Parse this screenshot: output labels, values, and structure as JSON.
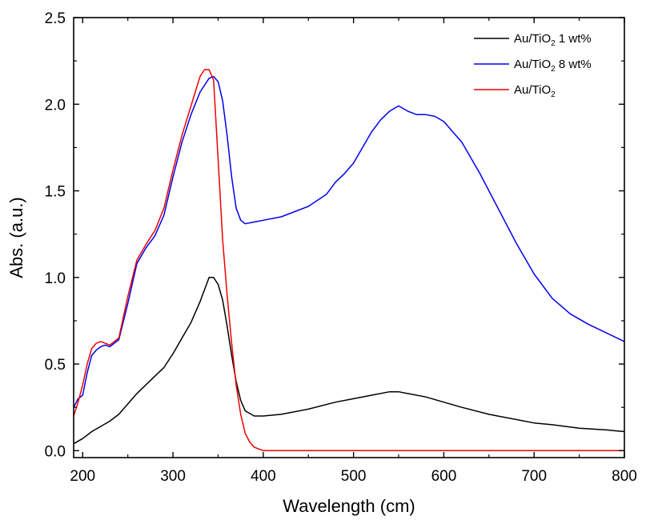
{
  "chart_data": {
    "type": "line",
    "title": "",
    "xlabel": "Wavelength (cm)",
    "ylabel": "Abs. (a.u.)",
    "xlim": [
      190,
      800
    ],
    "ylim": [
      -0.04,
      2.5
    ],
    "xticks": [
      200,
      300,
      400,
      500,
      600,
      700,
      800
    ],
    "xtick_labels": [
      "200",
      "300",
      "400",
      "500",
      "600",
      "700",
      "800"
    ],
    "yticks": [
      0.0,
      0.5,
      1.0,
      1.5,
      2.0,
      2.5
    ],
    "ytick_labels": [
      "0.0",
      "0.5",
      "1.0",
      "1.5",
      "2.0",
      "2.5"
    ],
    "grid": false,
    "legend_position": "top-right",
    "series": [
      {
        "name": "Au/TiO₂ 1 wt%",
        "legend_main": "Au/TiO",
        "legend_sub": "2",
        "legend_suffix": " 1 wt%",
        "color": "#000000",
        "x": [
          190,
          200,
          210,
          220,
          230,
          240,
          250,
          260,
          270,
          280,
          290,
          300,
          310,
          320,
          330,
          340,
          345,
          350,
          355,
          360,
          365,
          370,
          375,
          380,
          390,
          400,
          420,
          450,
          480,
          500,
          520,
          540,
          550,
          560,
          580,
          600,
          620,
          650,
          680,
          700,
          720,
          750,
          780,
          800
        ],
        "y": [
          0.04,
          0.07,
          0.11,
          0.14,
          0.17,
          0.21,
          0.27,
          0.33,
          0.38,
          0.43,
          0.48,
          0.56,
          0.65,
          0.74,
          0.86,
          1.0,
          1.0,
          0.96,
          0.87,
          0.72,
          0.55,
          0.4,
          0.29,
          0.23,
          0.2,
          0.2,
          0.21,
          0.24,
          0.28,
          0.3,
          0.32,
          0.34,
          0.34,
          0.33,
          0.31,
          0.28,
          0.25,
          0.21,
          0.18,
          0.16,
          0.15,
          0.13,
          0.12,
          0.11
        ]
      },
      {
        "name": "Au/TiO₂ 8 wt%",
        "legend_main": "Au/TiO",
        "legend_sub": "2",
        "legend_suffix": " 8 wt%",
        "color": "#0000ee",
        "x": [
          190,
          195,
          200,
          205,
          210,
          215,
          220,
          225,
          230,
          240,
          250,
          260,
          270,
          280,
          290,
          300,
          310,
          320,
          330,
          340,
          345,
          350,
          355,
          360,
          365,
          370,
          375,
          380,
          390,
          400,
          420,
          450,
          470,
          480,
          490,
          500,
          510,
          520,
          530,
          540,
          550,
          560,
          570,
          580,
          590,
          600,
          620,
          640,
          660,
          680,
          700,
          720,
          740,
          760,
          780,
          800
        ],
        "y": [
          0.25,
          0.3,
          0.32,
          0.45,
          0.55,
          0.58,
          0.6,
          0.61,
          0.6,
          0.64,
          0.85,
          1.08,
          1.17,
          1.24,
          1.36,
          1.58,
          1.78,
          1.94,
          2.07,
          2.15,
          2.16,
          2.13,
          2.02,
          1.82,
          1.58,
          1.4,
          1.33,
          1.31,
          1.32,
          1.33,
          1.35,
          1.41,
          1.48,
          1.55,
          1.6,
          1.66,
          1.75,
          1.84,
          1.91,
          1.96,
          1.99,
          1.96,
          1.94,
          1.94,
          1.93,
          1.9,
          1.78,
          1.6,
          1.4,
          1.2,
          1.02,
          0.88,
          0.79,
          0.73,
          0.68,
          0.63
        ]
      },
      {
        "name": "Au/TiO₂",
        "legend_main": "Au/TiO",
        "legend_sub": "2",
        "legend_suffix": "",
        "color": "#ee0000",
        "x": [
          190,
          195,
          200,
          205,
          210,
          215,
          220,
          225,
          230,
          240,
          250,
          260,
          270,
          280,
          290,
          300,
          310,
          320,
          330,
          335,
          340,
          345,
          350,
          355,
          360,
          365,
          370,
          375,
          380,
          385,
          390,
          395,
          400,
          420,
          450,
          500,
          550,
          600,
          650,
          700,
          750,
          800
        ],
        "y": [
          0.2,
          0.28,
          0.38,
          0.5,
          0.59,
          0.62,
          0.63,
          0.62,
          0.61,
          0.65,
          0.89,
          1.1,
          1.19,
          1.27,
          1.4,
          1.62,
          1.82,
          1.99,
          2.16,
          2.2,
          2.2,
          2.14,
          1.68,
          1.22,
          0.9,
          0.62,
          0.38,
          0.21,
          0.1,
          0.05,
          0.02,
          0.01,
          0.0,
          0.0,
          0.0,
          0.0,
          0.0,
          0.0,
          0.0,
          0.0,
          0.0,
          0.0
        ]
      }
    ]
  }
}
